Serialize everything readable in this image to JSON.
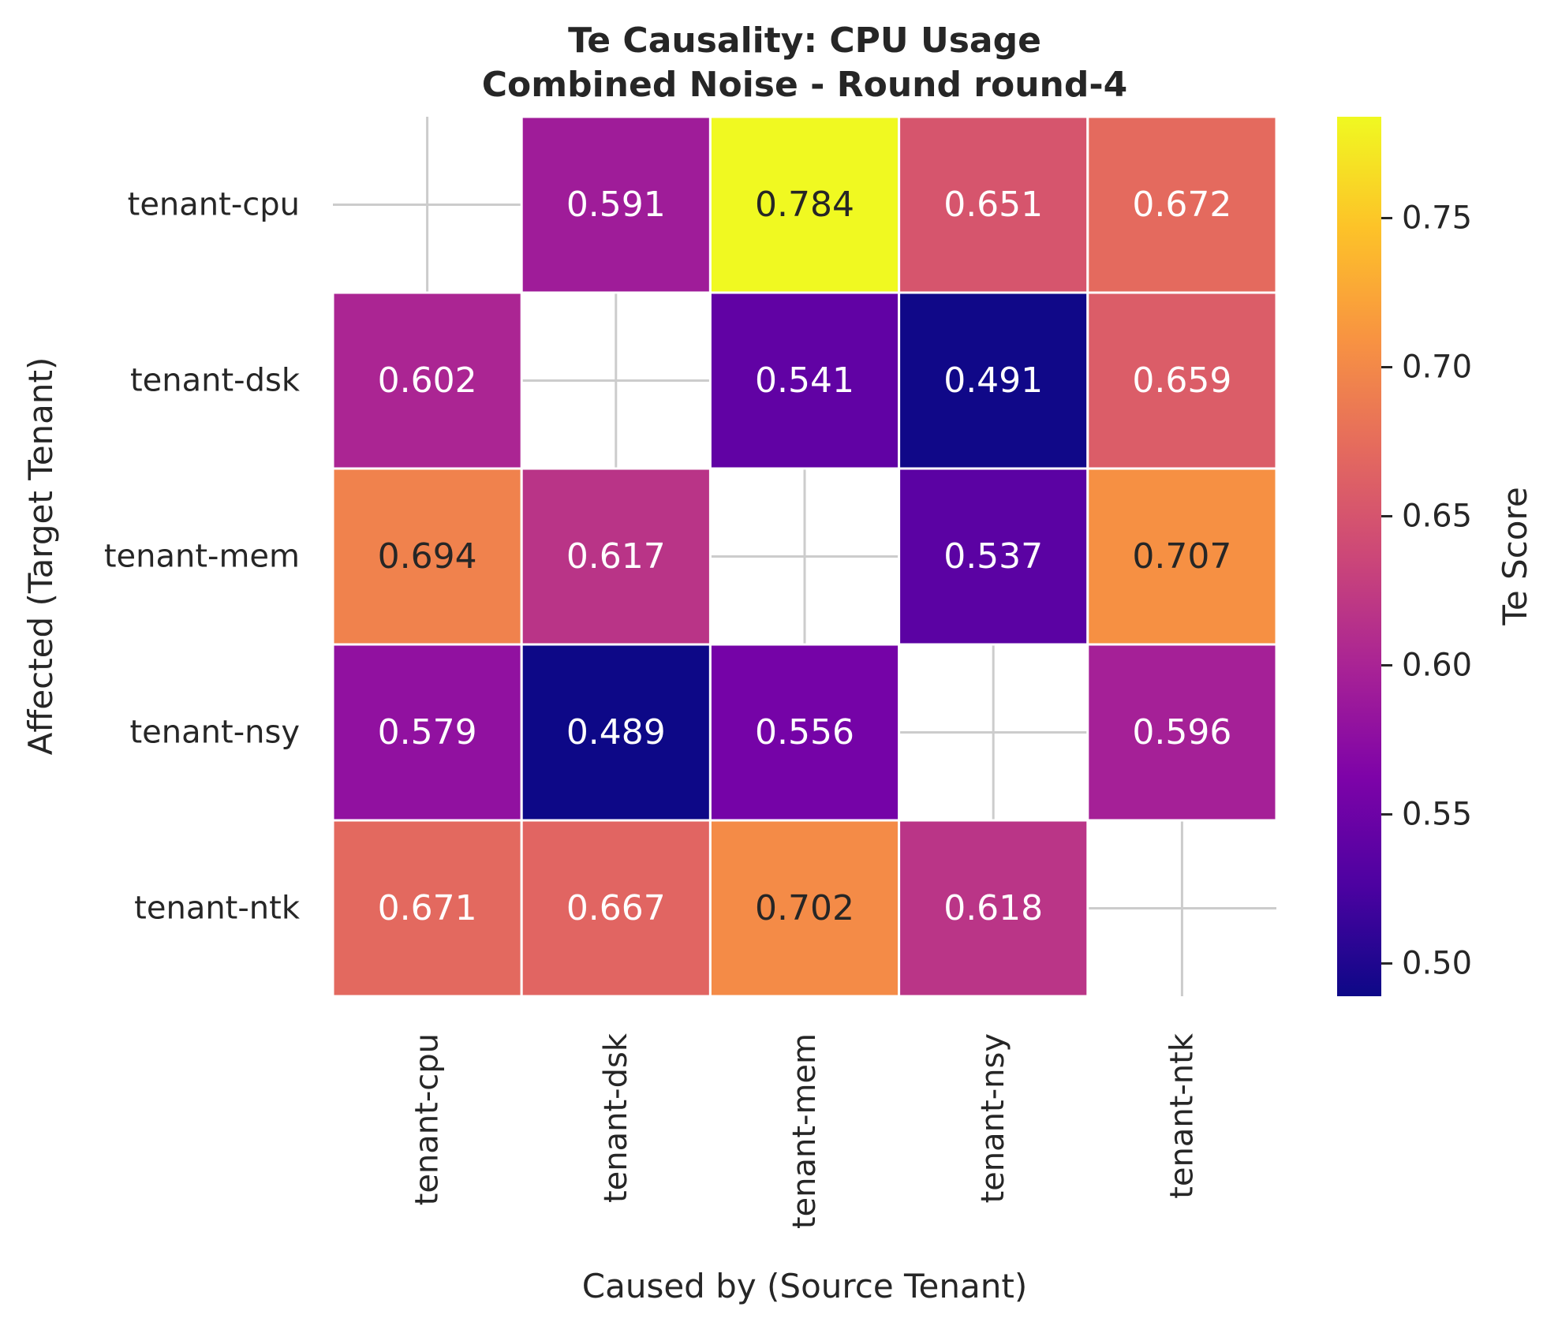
{
  "chart_data": {
    "type": "heatmap",
    "title": "Te Causality: CPU Usage",
    "subtitle": "Combined Noise - Round round-4",
    "xlabel": "Caused by (Source Tenant)",
    "ylabel": "Affected (Target Tenant)",
    "x_categories": [
      "tenant-cpu",
      "tenant-dsk",
      "tenant-mem",
      "tenant-nsy",
      "tenant-ntk"
    ],
    "y_categories": [
      "tenant-cpu",
      "tenant-dsk",
      "tenant-mem",
      "tenant-nsy",
      "tenant-ntk"
    ],
    "values": [
      [
        null,
        0.591,
        0.784,
        0.651,
        0.672
      ],
      [
        0.602,
        null,
        0.541,
        0.491,
        0.659
      ],
      [
        0.694,
        0.617,
        null,
        0.537,
        0.707
      ],
      [
        0.579,
        0.489,
        0.556,
        null,
        0.596
      ],
      [
        0.671,
        0.667,
        0.702,
        0.618,
        null
      ]
    ],
    "value_format": "0.000",
    "colormap": "plasma",
    "vmin": 0.489,
    "vmax": 0.784,
    "grid": true,
    "colorbar": {
      "label": "Te Score",
      "ticks": [
        0.5,
        0.55,
        0.6,
        0.65,
        0.7,
        0.75
      ],
      "tick_labels": [
        "0.50",
        "0.55",
        "0.60",
        "0.65",
        "0.70",
        "0.75"
      ]
    }
  }
}
